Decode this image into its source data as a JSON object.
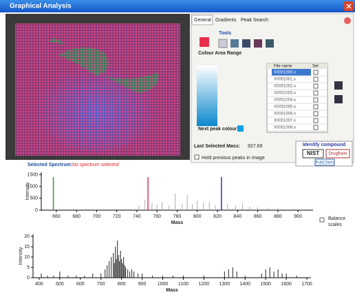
{
  "window": {
    "title": "Graphical Analysis"
  },
  "tabs": [
    "General",
    "Gradients",
    "Peak Search"
  ],
  "tools_label": "Tools",
  "colour_area_range_label": "Colour Area Range",
  "next_peak_colour_label": "Next peak colour",
  "file_table": {
    "headers": [
      "File name",
      "Sel"
    ],
    "rows": [
      [
        "X0001000.x"
      ],
      [
        "X0001001.x"
      ],
      [
        "X0001002.x"
      ],
      [
        "X0001003.x"
      ],
      [
        "X0001004.x"
      ],
      [
        "X0001005.x"
      ],
      [
        "X0001006.x"
      ],
      [
        "X0001007.x"
      ],
      [
        "X0001008.x"
      ]
    ]
  },
  "last_selected_mass_label": "Last Selected Mass:",
  "last_selected_mass": "927.69",
  "hold_previous_label": "Hold previous peaks in image",
  "identify_compound": {
    "title": "Identify compound",
    "buttons": [
      "NIST",
      "DrugBank",
      "PubChem"
    ]
  },
  "selected_spectrum_label": "Selected Spectrum:",
  "no_spectrum_label": "No spectrum selected",
  "balance_scales": [
    "Balance",
    "scales"
  ],
  "chart_data": [
    {
      "type": "bar",
      "xlabel": "Mass",
      "ylabel": "Intensity",
      "color": "#aaaaaa",
      "x": [
        742,
        748,
        755,
        760,
        765,
        772,
        778,
        785,
        790,
        795,
        800,
        806,
        812,
        818,
        830,
        838,
        845,
        852,
        860,
        870,
        880,
        895,
        905
      ],
      "values": [
        200,
        450,
        300,
        250,
        350,
        200,
        700,
        280,
        650,
        250,
        400,
        300,
        350,
        200,
        250,
        180,
        300,
        150,
        120,
        100,
        90,
        60,
        40
      ],
      "markers": [
        {
          "x": 657,
          "value": 1400,
          "color": "#2a9a3a"
        },
        {
          "x": 751,
          "value": 1400,
          "color": "#e8304a"
        },
        {
          "x": 824,
          "value": 1400,
          "color": "#3030c0"
        }
      ],
      "xlim": [
        645,
        915
      ],
      "xticks": [
        660,
        680,
        700,
        720,
        740,
        760,
        780,
        800,
        820,
        840,
        860,
        880,
        900
      ],
      "ylim": [
        0,
        1600
      ],
      "yticks": [
        0,
        500,
        1000,
        1500
      ]
    },
    {
      "type": "bar",
      "xlabel": "Mass",
      "ylabel": "Intensity",
      "color": "#222222",
      "x": [
        410,
        440,
        470,
        500,
        540,
        580,
        620,
        660,
        700,
        720,
        730,
        740,
        750,
        760,
        765,
        770,
        775,
        780,
        785,
        790,
        795,
        800,
        805,
        810,
        815,
        820,
        830,
        840,
        850,
        860,
        880,
        900,
        950,
        1000,
        1050,
        1100,
        1200,
        1300,
        1320,
        1340,
        1360,
        1400,
        1480,
        1500,
        1520,
        1540,
        1560,
        1580,
        1600,
        1650
      ],
      "values": [
        2,
        1,
        1,
        3,
        1,
        1,
        1,
        2,
        2,
        4,
        6,
        8,
        10,
        12,
        7,
        15,
        9,
        18,
        11,
        8,
        13,
        9,
        7,
        10,
        6,
        5,
        4,
        3,
        4,
        3,
        2,
        2,
        1,
        1,
        1,
        1,
        1,
        3,
        4,
        5,
        3,
        1,
        2,
        4,
        5,
        3,
        4,
        2,
        2,
        1
      ],
      "xlim": [
        370,
        1720
      ],
      "xticks": [
        400,
        500,
        600,
        700,
        800,
        900,
        1000,
        1100,
        1200,
        1300,
        1400,
        1500,
        1600,
        1700
      ],
      "ylim": [
        0,
        21
      ],
      "yticks": [
        0,
        5,
        10,
        15,
        20
      ]
    }
  ]
}
